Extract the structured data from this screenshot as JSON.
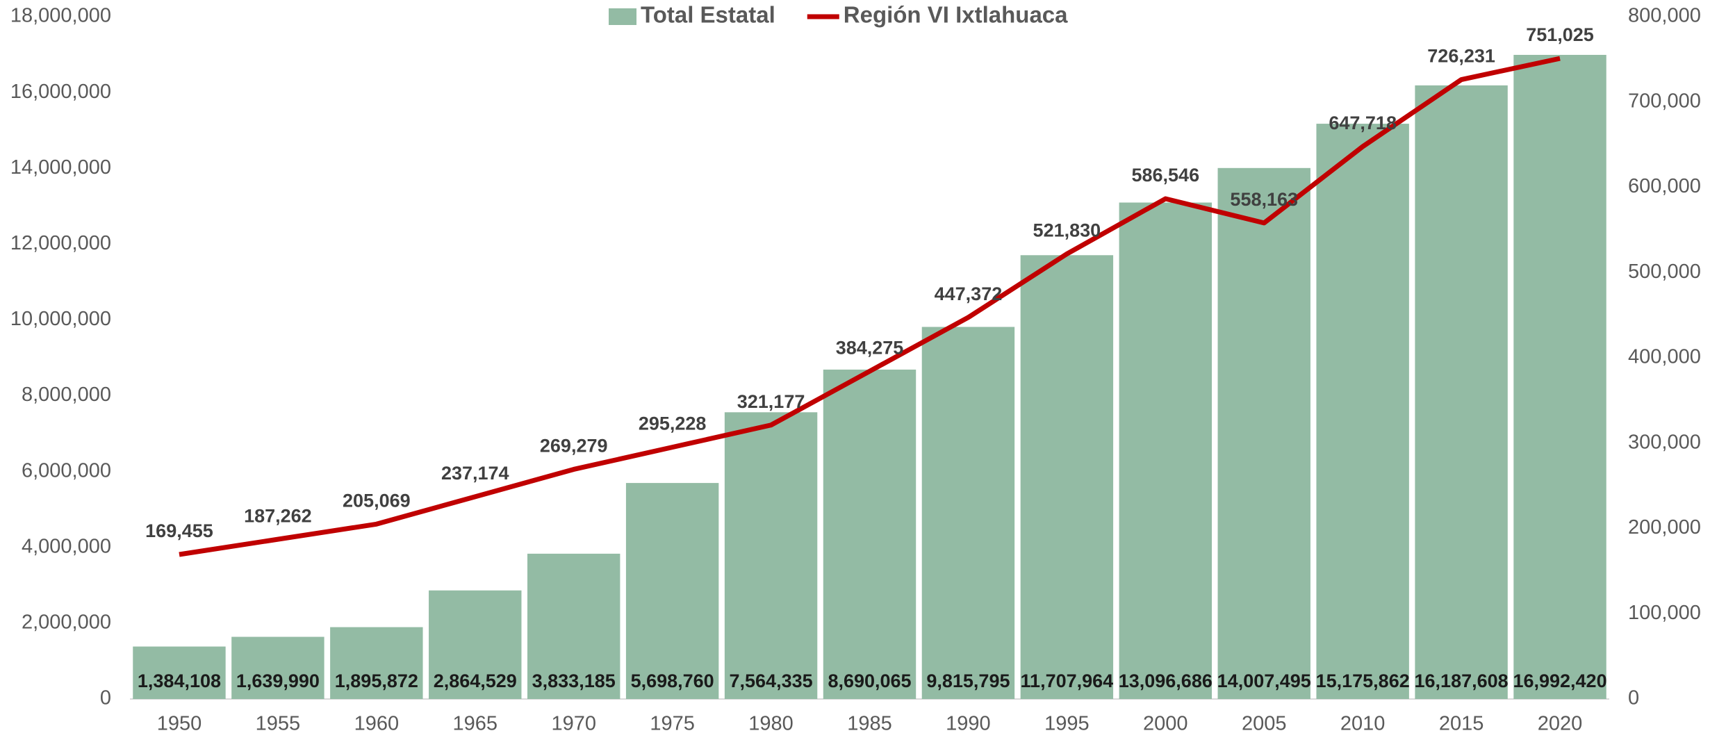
{
  "chart_data": {
    "type": "bar",
    "categories": [
      "1950",
      "1955",
      "1960",
      "1965",
      "1970",
      "1975",
      "1980",
      "1985",
      "1990",
      "1995",
      "2000",
      "2005",
      "2010",
      "2015",
      "2020"
    ],
    "series": [
      {
        "name": "Total Estatal",
        "type": "bar",
        "axis": "y",
        "color": "#93bba4",
        "values": [
          1384108,
          1639990,
          1895872,
          2864529,
          3833185,
          5698760,
          7564335,
          8690065,
          9815795,
          11707964,
          13096686,
          14007495,
          15175862,
          16187608,
          16992420
        ],
        "value_labels": [
          "1,384,108",
          "1,639,990",
          "1,895,872",
          "2,864,529",
          "3,833,185",
          "5,698,760",
          "7,564,335",
          "8,690,065",
          "9,815,795",
          "11,707,964",
          "13,096,686",
          "14,007,495",
          "15,175,862",
          "16,187,608",
          "16,992,420"
        ]
      },
      {
        "name": "Región VI Ixtlahuaca",
        "type": "line",
        "axis": "y2",
        "color": "#c00000",
        "values": [
          169455,
          187262,
          205069,
          237174,
          269279,
          295228,
          321177,
          384275,
          447372,
          521830,
          586546,
          558163,
          647718,
          726231,
          751025
        ],
        "value_labels": [
          "169,455",
          "187,262",
          "205,069",
          "237,174",
          "269,279",
          "295,228",
          "321,177",
          "384,275",
          "447,372",
          "521,830",
          "586,546",
          "558,163",
          "647,718",
          "726,231",
          "751,025"
        ]
      }
    ],
    "ylim": [
      0,
      18000000
    ],
    "yticks": [
      0,
      {
        "value": 2000000,
        "label": "2,000,000"
      },
      {
        "value": 4000000,
        "label": "4,000,000"
      },
      {
        "value": 6000000,
        "label": "6,000,000"
      },
      {
        "value": 8000000,
        "label": "8,000,000"
      },
      {
        "value": 10000000,
        "label": "10,000,000"
      },
      {
        "value": 12000000,
        "label": "12,000,000"
      },
      {
        "value": 14000000,
        "label": "14,000,000"
      },
      {
        "value": 16000000,
        "label": "16,000,000"
      },
      {
        "value": 18000000,
        "label": "18,000,000"
      }
    ],
    "y2lim": [
      0,
      800000
    ],
    "y2ticks": [
      0,
      {
        "value": 100000,
        "label": "100,000"
      },
      {
        "value": 200000,
        "label": "200,000"
      },
      {
        "value": 300000,
        "label": "300,000"
      },
      {
        "value": 400000,
        "label": "400,000"
      },
      {
        "value": 500000,
        "label": "500,000"
      },
      {
        "value": 600000,
        "label": "600,000"
      },
      {
        "value": 700000,
        "label": "700,000"
      },
      {
        "value": 800000,
        "label": "800,000"
      }
    ],
    "legend": "top",
    "grid": false
  }
}
